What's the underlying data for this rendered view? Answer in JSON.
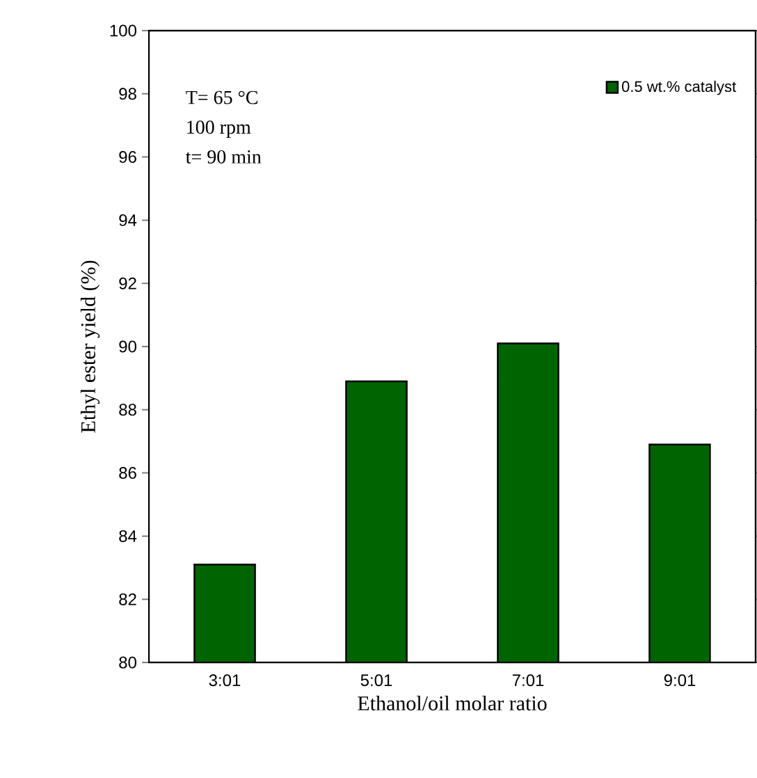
{
  "chart_data": {
    "type": "bar",
    "xlabel": "Ethanol/oil molar ratio",
    "ylabel": "Ethyl ester yield (%)",
    "categories": [
      "3:01",
      "5:01",
      "7:01",
      "9:01"
    ],
    "series": [
      {
        "name": "0.5 wt.% catalyst",
        "color": "#006400",
        "values": [
          83.1,
          88.9,
          90.1,
          86.9
        ]
      }
    ],
    "ylim": [
      80,
      100
    ],
    "yticks": [
      80,
      82,
      84,
      86,
      88,
      90,
      92,
      94,
      96,
      98,
      100
    ],
    "legend": "top right",
    "annotations": [
      "T= 65 °C",
      "100 rpm",
      "t= 90 min"
    ]
  }
}
